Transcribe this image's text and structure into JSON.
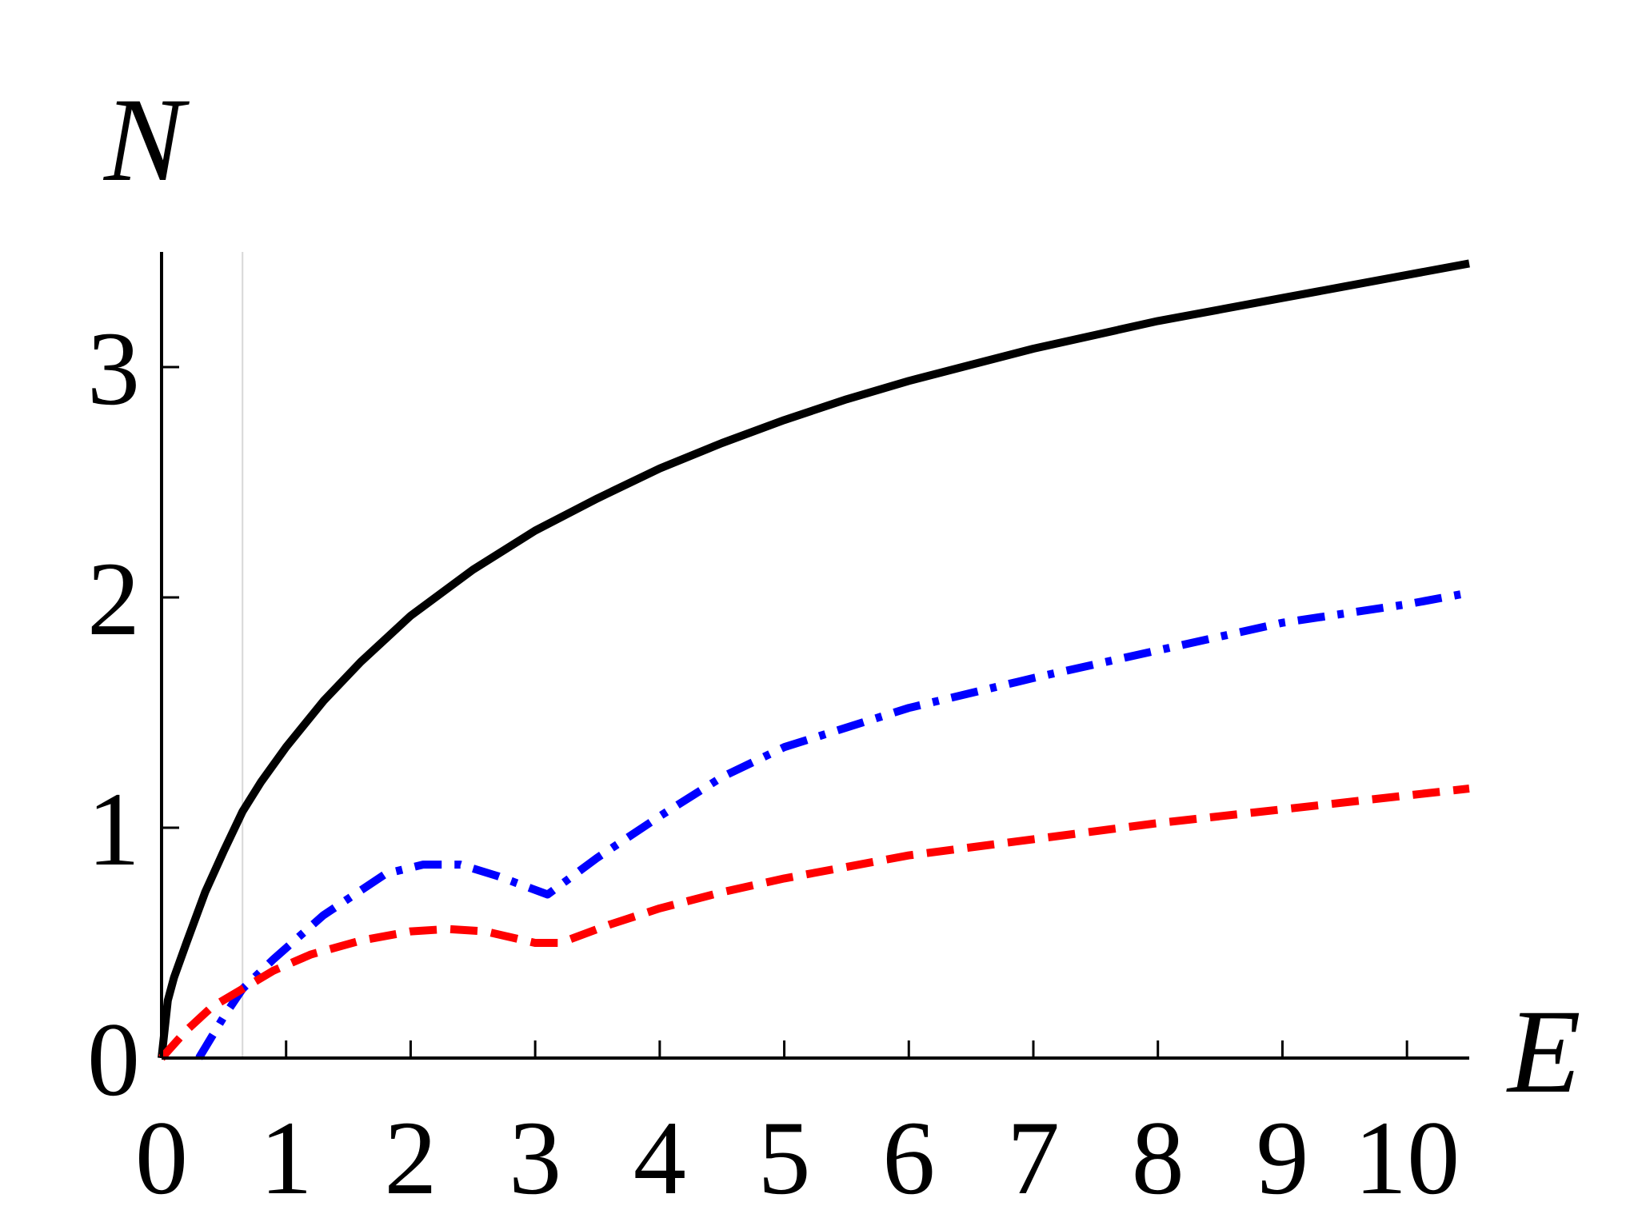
{
  "chart_data": {
    "type": "line",
    "title": "",
    "xlabel": "E",
    "ylabel": "N",
    "xlim": [
      0,
      10.5
    ],
    "ylim": [
      0,
      3.5
    ],
    "grid": false,
    "reference_line_x": 0.65,
    "x_ticks": [
      0,
      1,
      2,
      3,
      4,
      5,
      6,
      7,
      8,
      9,
      10
    ],
    "y_ticks": [
      0,
      1,
      2,
      3
    ],
    "x_tick_labels": [
      "0",
      "1",
      "2",
      "3",
      "4",
      "5",
      "6",
      "7",
      "8",
      "9",
      "10"
    ],
    "y_tick_labels": [
      "0",
      "1",
      "2",
      "3"
    ],
    "series": [
      {
        "style": "solid",
        "color": "#000000",
        "x": [
          0,
          0.05,
          0.1,
          0.2,
          0.35,
          0.5,
          0.65,
          0.8,
          1.0,
          1.3,
          1.6,
          2.0,
          2.5,
          3.0,
          3.5,
          4.0,
          4.5,
          5.0,
          5.5,
          6.0,
          6.5,
          7.0,
          7.5,
          8.0,
          8.5,
          9.0,
          9.5,
          10.0,
          10.5
        ],
        "y": [
          0,
          0.25,
          0.35,
          0.5,
          0.72,
          0.9,
          1.07,
          1.2,
          1.35,
          1.55,
          1.72,
          1.92,
          2.12,
          2.29,
          2.43,
          2.56,
          2.67,
          2.77,
          2.86,
          2.94,
          3.01,
          3.08,
          3.14,
          3.2,
          3.25,
          3.3,
          3.35,
          3.4,
          3.45
        ]
      },
      {
        "style": "dashdot",
        "color": "#0000ff",
        "x": [
          0.3,
          0.5,
          0.65,
          0.9,
          1.3,
          1.8,
          2.1,
          2.4,
          2.7,
          3.1,
          3.5,
          4.0,
          4.5,
          5.0,
          6.0,
          7.0,
          8.0,
          9.0,
          10.0,
          10.5
        ],
        "y": [
          0,
          0.18,
          0.3,
          0.43,
          0.62,
          0.8,
          0.84,
          0.84,
          0.79,
          0.71,
          0.87,
          1.05,
          1.22,
          1.35,
          1.52,
          1.65,
          1.77,
          1.89,
          1.97,
          2.02
        ]
      },
      {
        "style": "dashed",
        "color": "#ff0000",
        "x": [
          0,
          0.2,
          0.4,
          0.65,
          0.9,
          1.2,
          1.6,
          2.0,
          2.3,
          2.6,
          3.0,
          3.2,
          3.6,
          4.0,
          4.5,
          5.0,
          6.0,
          7.0,
          8.0,
          9.0,
          10.0,
          10.5
        ],
        "y": [
          0,
          0.12,
          0.22,
          0.3,
          0.38,
          0.45,
          0.51,
          0.55,
          0.56,
          0.55,
          0.5,
          0.5,
          0.58,
          0.65,
          0.72,
          0.78,
          0.88,
          0.95,
          1.02,
          1.08,
          1.14,
          1.17
        ]
      }
    ]
  }
}
